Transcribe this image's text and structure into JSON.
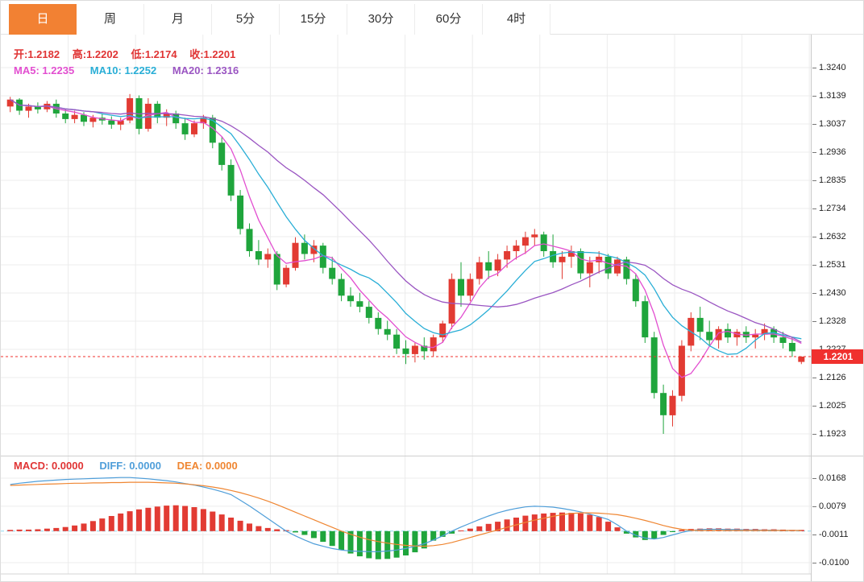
{
  "tabs": [
    {
      "id": "day",
      "label": "日",
      "active": true
    },
    {
      "id": "week",
      "label": "周",
      "active": false
    },
    {
      "id": "month",
      "label": "月",
      "active": false
    },
    {
      "id": "5min",
      "label": "5分",
      "active": false
    },
    {
      "id": "15min",
      "label": "15分",
      "active": false
    },
    {
      "id": "30min",
      "label": "30分",
      "active": false
    },
    {
      "id": "60min",
      "label": "60分",
      "active": false
    },
    {
      "id": "4hour",
      "label": "4时",
      "active": false
    }
  ],
  "ohlc_bar": {
    "open_label": "开:",
    "open": "1.2182",
    "high_label": "高:",
    "high": "1.2202",
    "low_label": "低:",
    "low": "1.2174",
    "close_label": "收:",
    "close": "1.2201"
  },
  "ma_bar": {
    "ma5_label": "MA5:",
    "ma5": "1.2235",
    "ma10_label": "MA10:",
    "ma10": "1.2252",
    "ma20_label": "MA20:",
    "ma20": "1.2316"
  },
  "price_axis": {
    "ticks": [
      "1.3240",
      "1.3139",
      "1.3037",
      "1.2936",
      "1.2835",
      "1.2734",
      "1.2632",
      "1.2531",
      "1.2430",
      "1.2328",
      "1.2227",
      "1.2126",
      "1.2025",
      "1.1923"
    ],
    "current": "1.2201"
  },
  "macd_bar": {
    "macd_label": "MACD:",
    "macd": "0.0000",
    "diff_label": "DIFF:",
    "diff": "0.0000",
    "dea_label": "DEA:",
    "dea": "0.0000"
  },
  "macd_axis": {
    "ticks": [
      "0.0168",
      "0.0079",
      "-0.0011",
      "-0.0100"
    ]
  },
  "colors": {
    "accent_orange": "#f28133",
    "up_red": "#e23b33",
    "down_green": "#1fa53c",
    "ma5_pink": "#e24ed0",
    "ma10_cyan": "#29aed6",
    "ma20_purple": "#9a55c2",
    "diff_blue": "#4f9ed9",
    "dea_orange": "#ef8632",
    "badge_red": "#f0312e",
    "zero_line_blue": "#8fd8f0",
    "grid": "#ececec",
    "axis_text": "#222222"
  },
  "chart_data": {
    "type": "candlestick",
    "timeframe": "日",
    "title": "",
    "ohlc_display": {
      "open": 1.2182,
      "high": 1.2202,
      "low": 1.2174,
      "close": 1.2201
    },
    "ma_display": {
      "MA5": 1.2235,
      "MA10": 1.2252,
      "MA20": 1.2316
    },
    "ma_periods": [
      5,
      10,
      20
    ],
    "price_ticks": [
      1.324,
      1.3139,
      1.3037,
      1.2936,
      1.2835,
      1.2734,
      1.2632,
      1.2531,
      1.243,
      1.2328,
      1.2227,
      1.2126,
      1.2025,
      1.1923
    ],
    "current_price": 1.2201,
    "grid": true,
    "candles": [
      [
        1.31,
        1.3135,
        1.308,
        1.3125
      ],
      [
        1.3125,
        1.313,
        1.307,
        1.3085
      ],
      [
        1.3085,
        1.311,
        1.306,
        1.31
      ],
      [
        1.31,
        1.3115,
        1.3075,
        1.309
      ],
      [
        1.309,
        1.312,
        1.308,
        1.311
      ],
      [
        1.311,
        1.3125,
        1.306,
        1.3075
      ],
      [
        1.3075,
        1.309,
        1.304,
        1.3055
      ],
      [
        1.3055,
        1.3085,
        1.304,
        1.307
      ],
      [
        1.307,
        1.308,
        1.303,
        1.3045
      ],
      [
        1.3045,
        1.307,
        1.3025,
        1.306
      ],
      [
        1.306,
        1.3075,
        1.3035,
        1.305
      ],
      [
        1.305,
        1.3065,
        1.302,
        1.3035
      ],
      [
        1.3035,
        1.306,
        1.3015,
        1.305
      ],
      [
        1.305,
        1.3145,
        1.304,
        1.313
      ],
      [
        1.313,
        1.314,
        1.3,
        1.302
      ],
      [
        1.302,
        1.313,
        1.301,
        1.311
      ],
      [
        1.311,
        1.312,
        1.304,
        1.306
      ],
      [
        1.306,
        1.309,
        1.303,
        1.3075
      ],
      [
        1.3075,
        1.3085,
        1.302,
        1.304
      ],
      [
        1.304,
        1.306,
        1.298,
        1.3
      ],
      [
        1.3,
        1.305,
        1.299,
        1.304
      ],
      [
        1.304,
        1.307,
        1.302,
        1.306
      ],
      [
        1.306,
        1.307,
        1.295,
        1.297
      ],
      [
        1.297,
        1.299,
        1.287,
        1.289
      ],
      [
        1.289,
        1.291,
        1.276,
        1.278
      ],
      [
        1.278,
        1.28,
        1.264,
        1.266
      ],
      [
        1.266,
        1.268,
        1.256,
        1.258
      ],
      [
        1.258,
        1.262,
        1.253,
        1.255
      ],
      [
        1.255,
        1.259,
        1.252,
        1.257
      ],
      [
        1.257,
        1.258,
        1.244,
        1.246
      ],
      [
        1.246,
        1.253,
        1.245,
        1.252
      ],
      [
        1.252,
        1.263,
        1.251,
        1.261
      ],
      [
        1.261,
        1.264,
        1.255,
        1.257
      ],
      [
        1.257,
        1.262,
        1.254,
        1.26
      ],
      [
        1.26,
        1.261,
        1.25,
        1.252
      ],
      [
        1.252,
        1.256,
        1.246,
        1.248
      ],
      [
        1.248,
        1.25,
        1.24,
        1.242
      ],
      [
        1.242,
        1.245,
        1.238,
        1.24
      ],
      [
        1.24,
        1.243,
        1.236,
        1.238
      ],
      [
        1.238,
        1.24,
        1.232,
        1.234
      ],
      [
        1.234,
        1.236,
        1.228,
        1.23
      ],
      [
        1.23,
        1.233,
        1.226,
        1.228
      ],
      [
        1.228,
        1.23,
        1.221,
        1.223
      ],
      [
        1.223,
        1.226,
        1.2174,
        1.221
      ],
      [
        1.221,
        1.225,
        1.218,
        1.224
      ],
      [
        1.224,
        1.227,
        1.219,
        1.222
      ],
      [
        1.222,
        1.228,
        1.22,
        1.227
      ],
      [
        1.227,
        1.233,
        1.225,
        1.232
      ],
      [
        1.232,
        1.25,
        1.23,
        1.248
      ],
      [
        1.248,
        1.254,
        1.238,
        1.242
      ],
      [
        1.242,
        1.25,
        1.24,
        1.248
      ],
      [
        1.248,
        1.256,
        1.246,
        1.254
      ],
      [
        1.254,
        1.258,
        1.248,
        1.251
      ],
      [
        1.251,
        1.257,
        1.249,
        1.255
      ],
      [
        1.255,
        1.26,
        1.252,
        1.258
      ],
      [
        1.258,
        1.262,
        1.255,
        1.26
      ],
      [
        1.26,
        1.265,
        1.257,
        1.263
      ],
      [
        1.263,
        1.266,
        1.26,
        1.264
      ],
      [
        1.264,
        1.265,
        1.256,
        1.258
      ],
      [
        1.258,
        1.264,
        1.252,
        1.254
      ],
      [
        1.254,
        1.258,
        1.248,
        1.256
      ],
      [
        1.256,
        1.26,
        1.252,
        1.258
      ],
      [
        1.258,
        1.259,
        1.248,
        1.25
      ],
      [
        1.25,
        1.256,
        1.245,
        1.254
      ],
      [
        1.254,
        1.258,
        1.25,
        1.256
      ],
      [
        1.256,
        1.257,
        1.248,
        1.25
      ],
      [
        1.25,
        1.256,
        1.249,
        1.255
      ],
      [
        1.255,
        1.256,
        1.246,
        1.248
      ],
      [
        1.248,
        1.25,
        1.238,
        1.24
      ],
      [
        1.24,
        1.242,
        1.225,
        1.227
      ],
      [
        1.227,
        1.229,
        1.205,
        1.207
      ],
      [
        1.207,
        1.21,
        1.1923,
        1.199
      ],
      [
        1.199,
        1.208,
        1.195,
        1.206
      ],
      [
        1.206,
        1.226,
        1.204,
        1.224
      ],
      [
        1.224,
        1.236,
        1.222,
        1.234
      ],
      [
        1.234,
        1.238,
        1.226,
        1.229
      ],
      [
        1.229,
        1.233,
        1.224,
        1.226
      ],
      [
        1.226,
        1.231,
        1.223,
        1.23
      ],
      [
        1.23,
        1.232,
        1.225,
        1.227
      ],
      [
        1.227,
        1.23,
        1.224,
        1.229
      ],
      [
        1.229,
        1.231,
        1.225,
        1.227
      ],
      [
        1.227,
        1.23,
        1.223,
        1.228
      ],
      [
        1.228,
        1.232,
        1.226,
        1.23
      ],
      [
        1.23,
        1.231,
        1.225,
        1.227
      ],
      [
        1.227,
        1.229,
        1.223,
        1.225
      ],
      [
        1.225,
        1.227,
        1.22,
        1.222
      ],
      [
        1.2182,
        1.2202,
        1.2174,
        1.2201
      ]
    ],
    "macd": {
      "ticks": [
        0.0168,
        0.0079,
        -0.0011,
        -0.01
      ],
      "values_display": {
        "MACD": 0.0,
        "DIFF": 0.0,
        "DEA": 0.0
      },
      "hist": [
        0.0004,
        0.0005,
        0.0005,
        0.0006,
        0.0008,
        0.001,
        0.0013,
        0.0018,
        0.0024,
        0.0032,
        0.004,
        0.0048,
        0.0056,
        0.0063,
        0.0069,
        0.0074,
        0.0078,
        0.0081,
        0.0082,
        0.008,
        0.0076,
        0.007,
        0.0062,
        0.0053,
        0.0043,
        0.0033,
        0.0024,
        0.0016,
        0.001,
        0.0006,
        0.0003,
        -0.0004,
        -0.0012,
        -0.0022,
        -0.0034,
        -0.0047,
        -0.006,
        -0.0071,
        -0.008,
        -0.0086,
        -0.0089,
        -0.0088,
        -0.0084,
        -0.0077,
        -0.0067,
        -0.0055,
        -0.003,
        -0.0018,
        -0.0008,
        0.0002,
        0.0008,
        0.0015,
        0.0023,
        0.003,
        0.0037,
        0.0043,
        0.0049,
        0.0053,
        0.0056,
        0.0058,
        0.0059,
        0.0058,
        0.0056,
        0.0052,
        0.0045,
        0.003,
        0.0012,
        -0.0008,
        -0.002,
        -0.0028,
        -0.0024,
        -0.0012,
        -0.0003,
        0.0004,
        0.0007,
        0.0008,
        0.0009,
        0.0009,
        0.0008,
        0.0008,
        0.0007,
        0.0007,
        0.0006,
        0.0006,
        0.0005,
        0.0004,
        0.0004
      ],
      "diff": [
        0.0148,
        0.0152,
        0.0155,
        0.0158,
        0.016,
        0.0162,
        0.0164,
        0.0165,
        0.0166,
        0.0167,
        0.0168,
        0.0169,
        0.017,
        0.017,
        0.0168,
        0.0166,
        0.0163,
        0.016,
        0.0156,
        0.0151,
        0.0146,
        0.014,
        0.0133,
        0.0125,
        0.0116,
        0.0098,
        0.008,
        0.006,
        0.004,
        0.002,
        0.0,
        -0.0015,
        -0.0028,
        -0.004,
        -0.0048,
        -0.0055,
        -0.006,
        -0.0063,
        -0.0064,
        -0.0065,
        -0.0065,
        -0.0063,
        -0.006,
        -0.0055,
        -0.0048,
        -0.004,
        -0.0028,
        -0.0015,
        0.0,
        0.0013,
        0.0025,
        0.0037,
        0.0048,
        0.0058,
        0.0066,
        0.0072,
        0.0077,
        0.0079,
        0.0078,
        0.0076,
        0.0072,
        0.0067,
        0.0061,
        0.0054,
        0.0046,
        0.0037,
        0.002,
        0.0,
        -0.0013,
        -0.0022,
        -0.0025,
        -0.002,
        -0.0012,
        -0.0004,
        0.0002,
        0.0005,
        0.0006,
        0.0006,
        0.0005,
        0.0005,
        0.0004,
        0.0004,
        0.0003,
        0.0003,
        0.0002,
        0.0002,
        0.0002
      ],
      "dea": [
        0.0145,
        0.0146,
        0.0147,
        0.0148,
        0.0149,
        0.015,
        0.0151,
        0.0152,
        0.0152,
        0.0153,
        0.0153,
        0.0154,
        0.0154,
        0.0155,
        0.0155,
        0.0155,
        0.0154,
        0.0153,
        0.0152,
        0.015,
        0.0147,
        0.0144,
        0.014,
        0.0135,
        0.0129,
        0.0122,
        0.0114,
        0.0105,
        0.0095,
        0.0084,
        0.0072,
        0.006,
        0.0048,
        0.0036,
        0.0024,
        0.0012,
        0.0,
        -0.001,
        -0.0019,
        -0.0027,
        -0.0033,
        -0.0038,
        -0.0042,
        -0.0045,
        -0.0047,
        -0.0048,
        -0.0046,
        -0.0042,
        -0.0036,
        -0.0028,
        -0.002,
        -0.0012,
        -0.0004,
        0.0004,
        0.0012,
        0.002,
        0.0028,
        0.0035,
        0.0041,
        0.0047,
        0.0052,
        0.0056,
        0.0058,
        0.0058,
        0.0057,
        0.0055,
        0.0052,
        0.0047,
        0.0041,
        0.0034,
        0.0026,
        0.0018,
        0.0011,
        0.0006,
        0.0003,
        0.0002,
        0.0002,
        0.0002,
        0.0002,
        0.0002,
        0.0002,
        0.0002,
        0.0002,
        0.0002,
        0.0002,
        0.0002,
        0.0002
      ]
    }
  }
}
